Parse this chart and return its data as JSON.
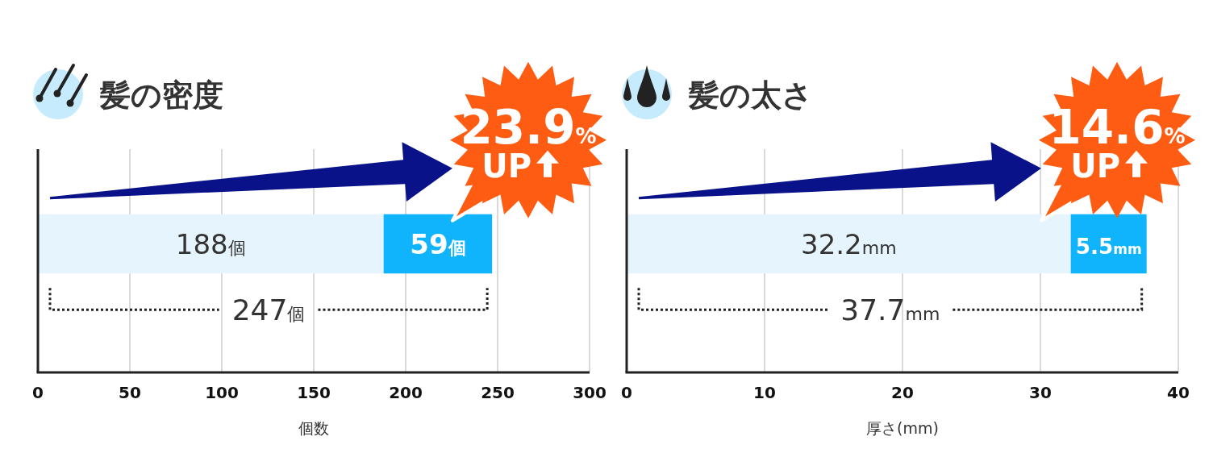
{
  "chart_data": [
    {
      "type": "bar",
      "orientation": "horizontal",
      "stacked": true,
      "title": "髪の密度",
      "xlabel": "個数",
      "categories": [
        null
      ],
      "series": [
        {
          "color": "#e6f5fd",
          "values": [
            188
          ],
          "value_labels": [
            "188個"
          ]
        },
        {
          "color": "#10b4fd",
          "values": [
            59
          ],
          "value_labels": [
            "59個"
          ]
        }
      ],
      "totals": [
        "247個"
      ],
      "xlim": [
        0,
        300
      ],
      "xticks": [
        0,
        50,
        100,
        150,
        200,
        250,
        300
      ],
      "grid": "x",
      "annotations": [
        "23.9% UP"
      ]
    },
    {
      "type": "bar",
      "orientation": "horizontal",
      "stacked": true,
      "title": "髪の太さ",
      "xlabel": "厚さ(mm)",
      "categories": [
        null
      ],
      "series": [
        {
          "color": "#e6f5fd",
          "values": [
            32.2
          ],
          "value_labels": [
            "32.2mm"
          ]
        },
        {
          "color": "#10b4fd",
          "values": [
            5.5
          ],
          "value_labels": [
            "5.5mm"
          ]
        }
      ],
      "totals": [
        "37.7mm"
      ],
      "xlim": [
        0,
        40
      ],
      "xticks": [
        0,
        10,
        20,
        30,
        40
      ],
      "grid": "x",
      "annotations": [
        "14.6% UP"
      ]
    }
  ]
}
